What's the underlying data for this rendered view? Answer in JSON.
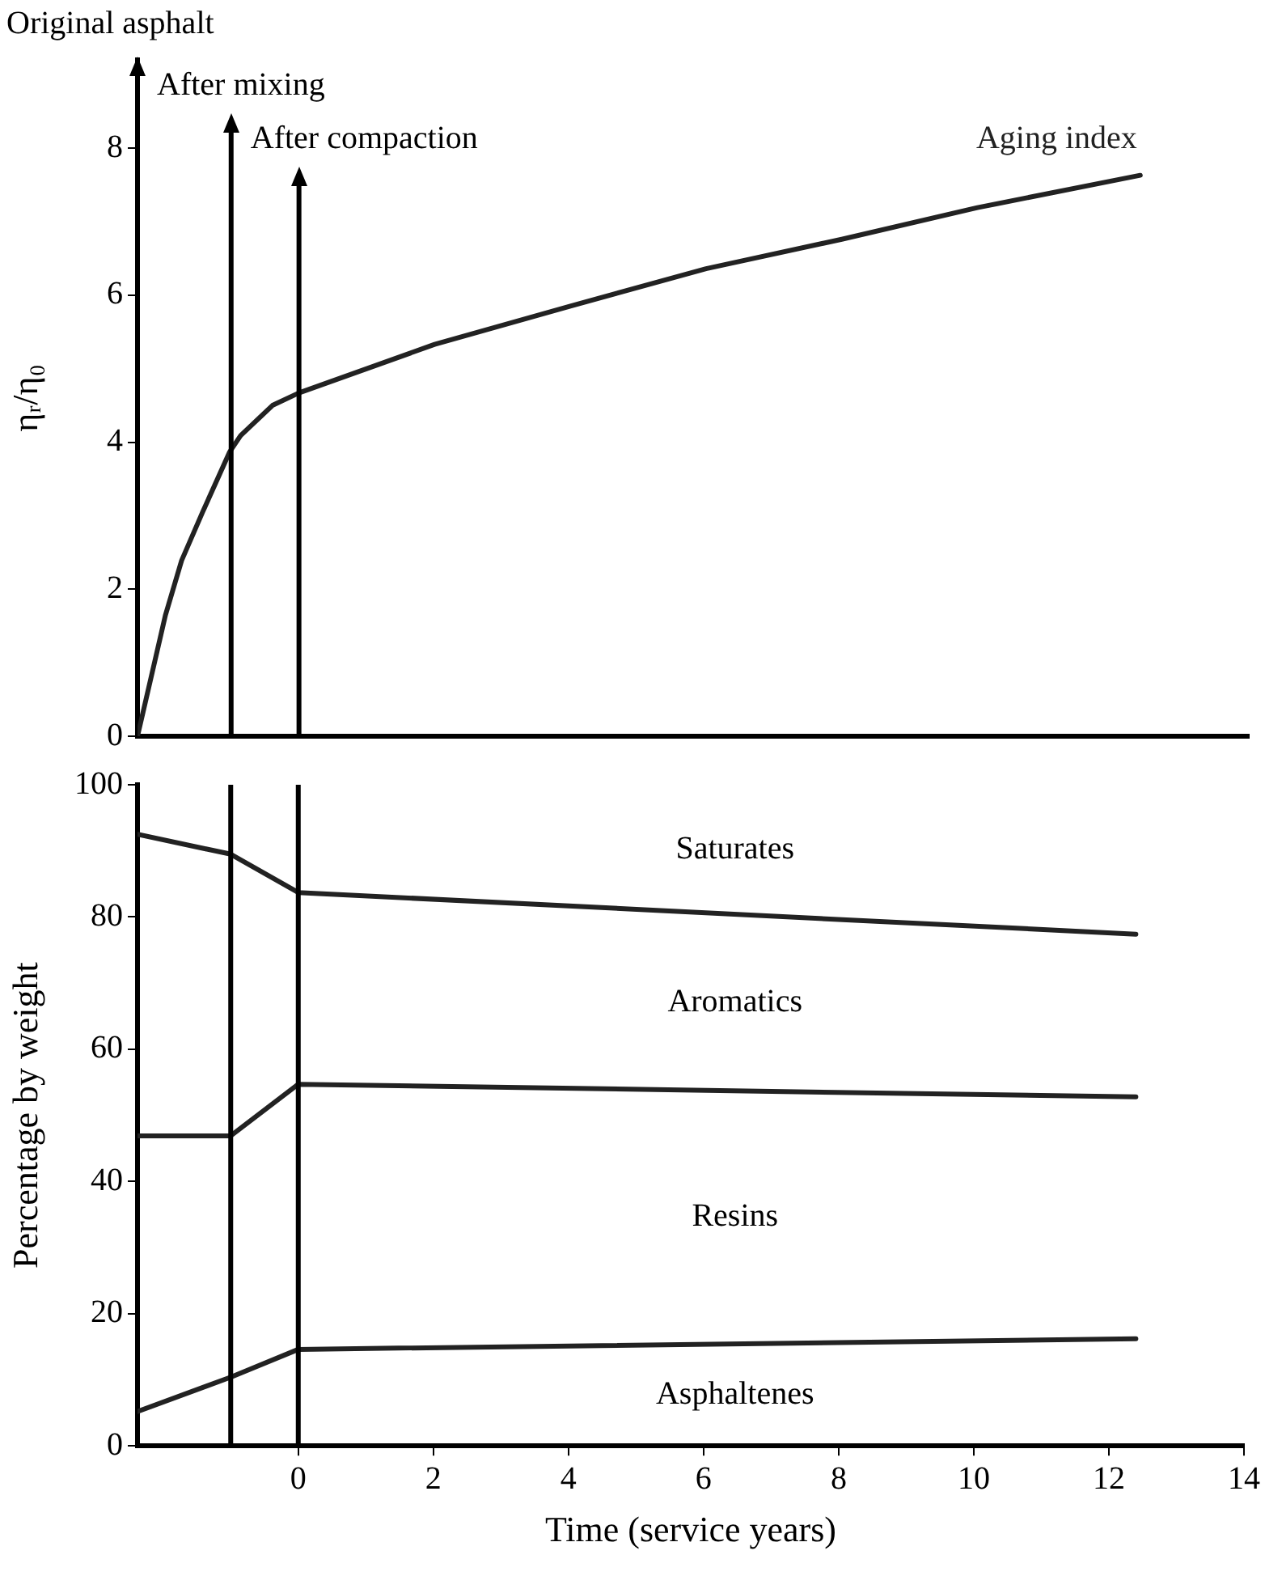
{
  "chart_data": [
    {
      "type": "line",
      "ylabel": "ηᵣ/η₀",
      "xlim": [
        -2.38,
        14
      ],
      "ylim": [
        0,
        9.2
      ],
      "yticks": [
        0,
        2,
        4,
        6,
        8
      ],
      "tick_labels": "y",
      "grid": false,
      "legend": false,
      "annotations": [
        "Original asphalt"
      ],
      "ref_lines": [
        {
          "axis": "x",
          "value": -1,
          "label": "After mixing"
        },
        {
          "axis": "x",
          "value": 0,
          "label": "After compaction"
        }
      ],
      "series": [
        {
          "name": "Aging index",
          "color": "#222222",
          "x": [
            -2.38,
            -1.97,
            -1.73,
            -1.42,
            -1.02,
            -0.86,
            -0.39,
            0,
            2,
            4,
            6,
            8,
            10,
            12.4
          ],
          "values": [
            0,
            1.64,
            2.39,
            3.05,
            3.87,
            4.09,
            4.5,
            4.67,
            5.33,
            5.85,
            6.36,
            6.76,
            7.19,
            7.63
          ]
        }
      ]
    },
    {
      "type": "line",
      "xlabel": "Time (service years)",
      "ylabel": "Percentage by weight",
      "xlim": [
        -2.38,
        14
      ],
      "xticks": [
        0,
        2,
        4,
        6,
        8,
        10,
        12,
        14
      ],
      "ylim": [
        0,
        100
      ],
      "yticks": [
        0,
        20,
        40,
        60,
        80,
        100
      ],
      "grid": false,
      "legend": false,
      "ref_lines": [
        {
          "axis": "x",
          "value": -1
        },
        {
          "axis": "x",
          "value": 0
        }
      ],
      "annotations": [
        "Saturates",
        "Aromatics",
        "Resins",
        "Asphaltenes"
      ],
      "series": [
        {
          "color": "#222222",
          "x": [
            -2.38,
            -1,
            0,
            12.4
          ],
          "values": [
            92.5,
            89.5,
            83.7,
            77.4
          ]
        },
        {
          "color": "#222222",
          "x": [
            -2.38,
            -1,
            0,
            12.4
          ],
          "values": [
            46.9,
            46.9,
            54.7,
            52.8
          ]
        },
        {
          "color": "#222222",
          "x": [
            -2.38,
            -1,
            0,
            12.4
          ],
          "values": [
            5.2,
            10.4,
            14.6,
            16.2
          ]
        }
      ]
    }
  ]
}
